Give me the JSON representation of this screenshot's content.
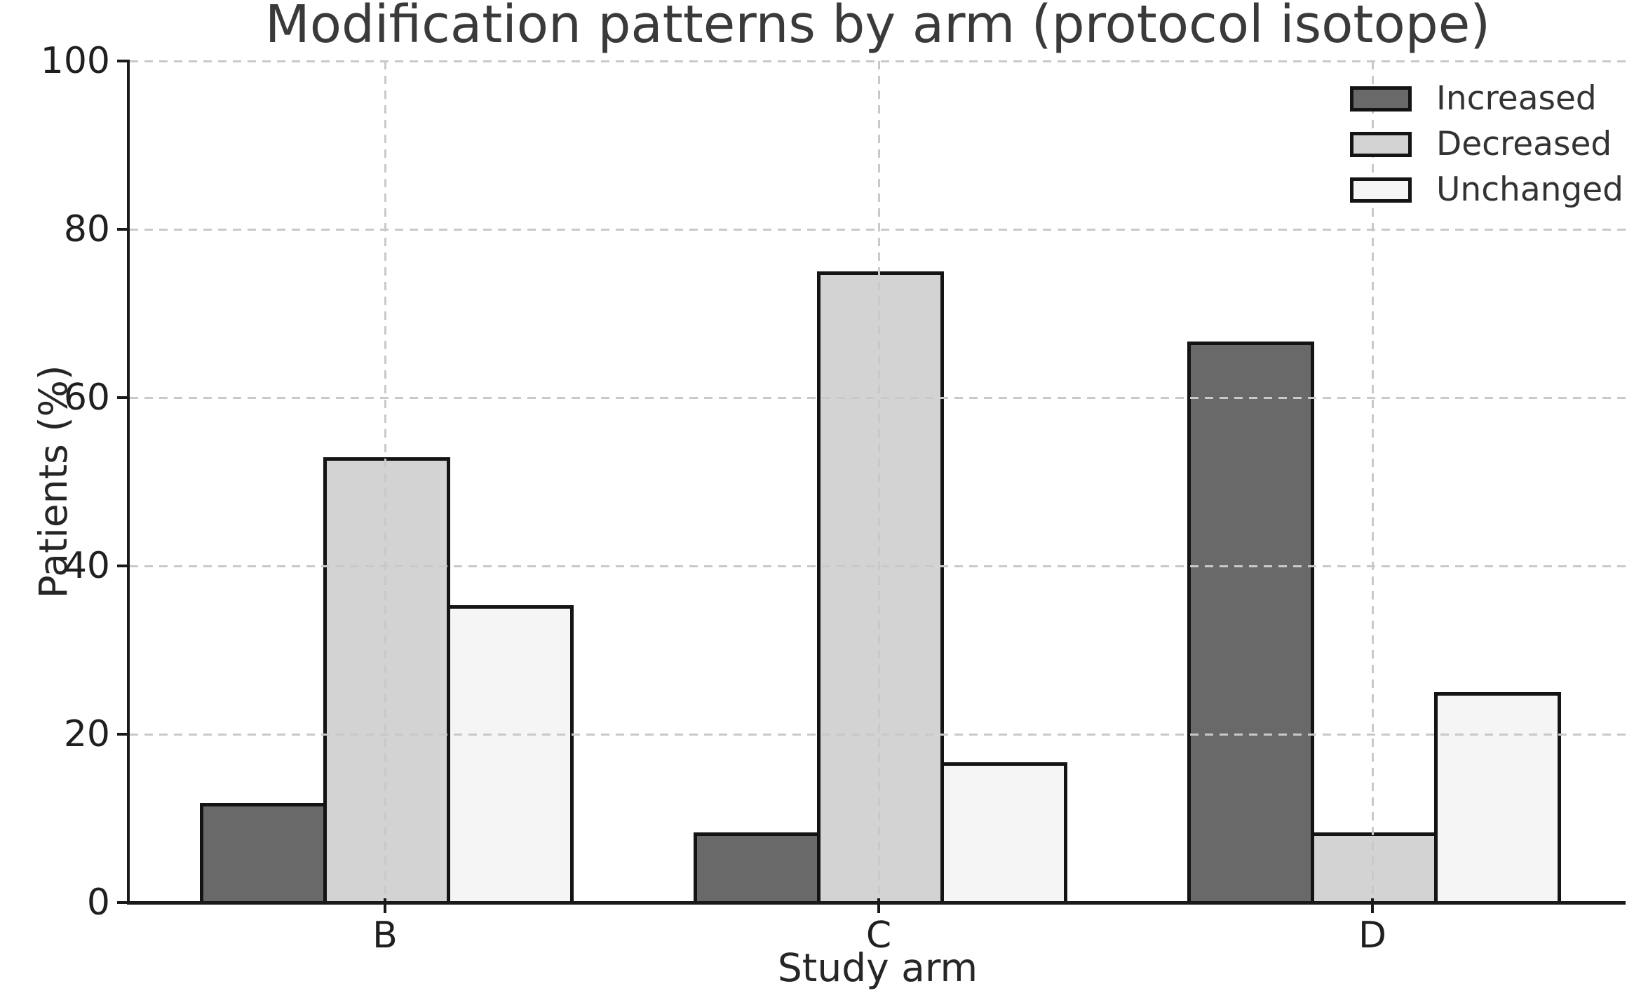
{
  "chart_data": {
    "type": "bar",
    "title": "Modification patterns by arm (protocol isotope)",
    "xlabel": "Study arm",
    "ylabel": "Patients (%)",
    "categories": [
      "B",
      "C",
      "D"
    ],
    "series": [
      {
        "name": "Increased",
        "color": "#696969",
        "values": [
          11.8,
          8.3,
          66.7
        ]
      },
      {
        "name": "Decreased",
        "color": "#d3d3d3",
        "values": [
          52.9,
          75.0,
          8.3
        ]
      },
      {
        "name": "Unchanged",
        "color": "#f5f5f5",
        "values": [
          35.3,
          16.7,
          25.0
        ]
      }
    ],
    "ylim": [
      0,
      100
    ],
    "yticks": [
      0,
      20,
      40,
      60,
      80,
      100
    ],
    "grid": "dashed, drawn above bars, horizontal at yticks and vertical at category centers",
    "legend_position": "upper right",
    "legend_frame": false,
    "bar_edge_color": "#141414",
    "grid_color": "#c9c9c9",
    "background_color": "#ffffff"
  }
}
